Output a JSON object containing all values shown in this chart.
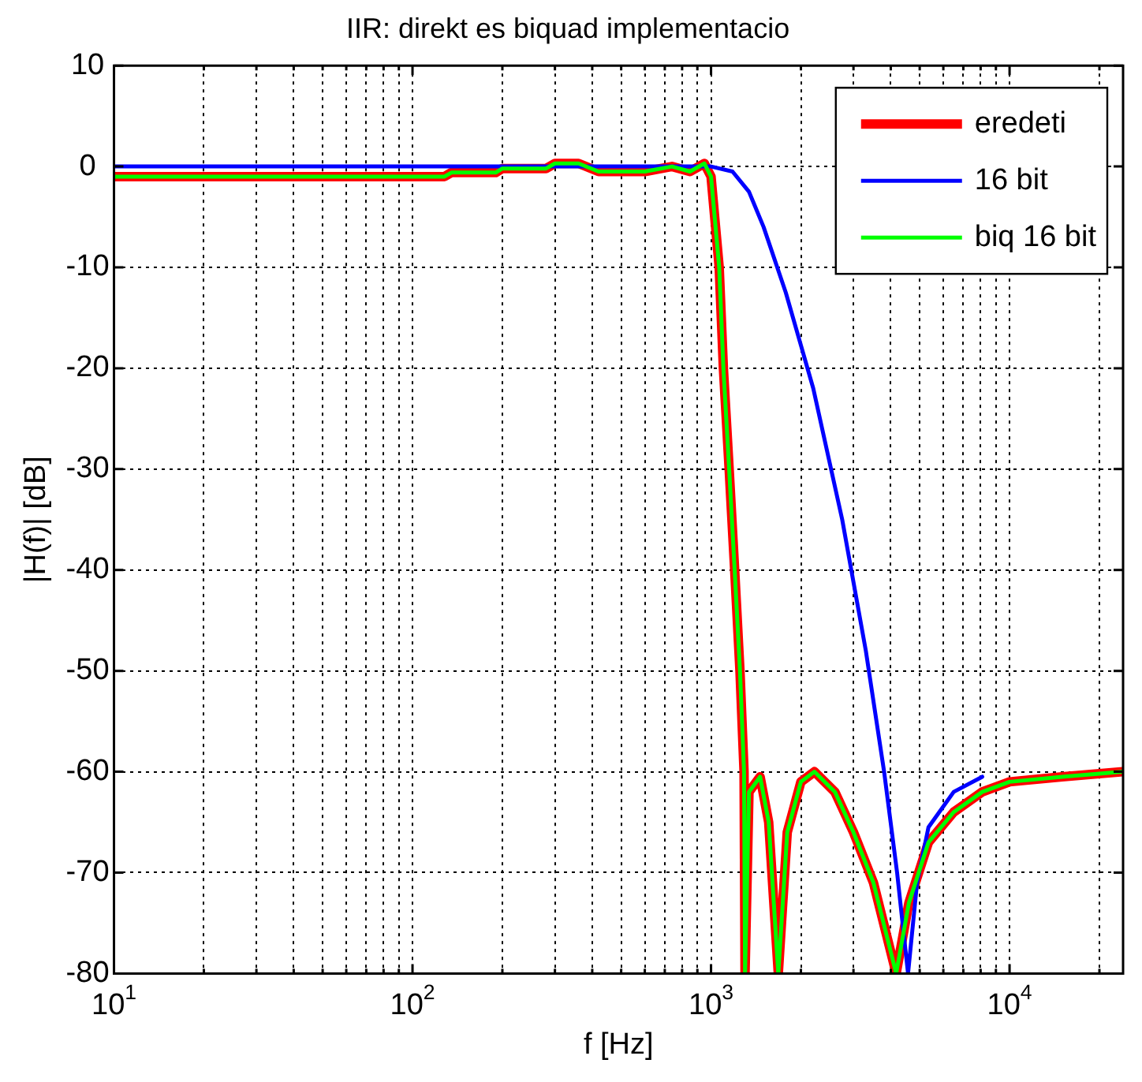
{
  "chart_data": {
    "type": "line",
    "title": "IIR: direkt es biquad implementacio",
    "xlabel": "f [Hz]",
    "ylabel": "|H(f)| [dB]",
    "log": "x",
    "grid": true,
    "legend": "top right",
    "marker": "none",
    "line_style": "solid",
    "xlim": [
      10,
      24000
    ],
    "ylim": [
      -80,
      10
    ],
    "xticks": [
      {
        "value": 10,
        "label": "10$^{1}$"
      },
      {
        "value": 20,
        "label": null
      },
      {
        "value": 30,
        "label": null
      },
      {
        "value": 40,
        "label": null
      },
      {
        "value": 50,
        "label": null
      },
      {
        "value": 60,
        "label": null
      },
      {
        "value": 70,
        "label": null
      },
      {
        "value": 80,
        "label": null
      },
      {
        "value": 90,
        "label": null
      },
      {
        "value": 100,
        "label": "10$^{2}$"
      },
      {
        "value": 200,
        "label": null
      },
      {
        "value": 300,
        "label": null
      },
      {
        "value": 400,
        "label": null
      },
      {
        "value": 500,
        "label": null
      },
      {
        "value": 600,
        "label": null
      },
      {
        "value": 700,
        "label": null
      },
      {
        "value": 800,
        "label": null
      },
      {
        "value": 900,
        "label": null
      },
      {
        "value": 1000,
        "label": "10$^{3}$"
      },
      {
        "value": 2000,
        "label": null
      },
      {
        "value": 3000,
        "label": null
      },
      {
        "value": 4000,
        "label": null
      },
      {
        "value": 5000,
        "label": null
      },
      {
        "value": 6000,
        "label": null
      },
      {
        "value": 7000,
        "label": null
      },
      {
        "value": 8000,
        "label": null
      },
      {
        "value": 9000,
        "label": null
      },
      {
        "value": 10000,
        "label": "10$^{4}$"
      },
      {
        "value": 20000,
        "label": null
      }
    ],
    "yticks": [
      10,
      0,
      -10,
      -20,
      -30,
      -40,
      -50,
      -60,
      -70,
      -80
    ],
    "series": [
      {
        "name": "eredeti",
        "color": "#ff0000",
        "x": [
          10,
          128,
          135,
          190,
          200,
          280,
          300,
          360,
          420,
          600,
          740,
          850,
          950,
          1000,
          1065,
          1100,
          1150,
          1200,
          1250,
          1290,
          1300,
          1340,
          1460,
          1560,
          1680,
          1800,
          2000,
          2220,
          2600,
          3000,
          3500,
          4170,
          4600,
          5350,
          6500,
          8100,
          10000,
          15000,
          24000
        ],
        "values": [
          -1,
          -1,
          -0.6,
          -0.6,
          -0.2,
          -0.2,
          0.3,
          0.3,
          -0.5,
          -0.5,
          0,
          -0.5,
          0.3,
          -1,
          -10,
          -20,
          -30,
          -40,
          -50,
          -60,
          -80,
          -62,
          -60.5,
          -65,
          -80,
          -66,
          -61,
          -60,
          -62,
          -66,
          -71,
          -80,
          -73,
          -67,
          -64,
          -62,
          -61,
          -60.5,
          -60
        ]
      },
      {
        "name": "16 bit",
        "color": "#0000ff",
        "x": [
          10,
          500,
          800,
          1000,
          1180,
          1340,
          1500,
          1780,
          2200,
          2750,
          3300,
          3800,
          4200,
          4570,
          4900,
          5350,
          6500,
          8100
        ],
        "values": [
          0,
          0,
          0,
          0,
          -0.5,
          -2.5,
          -6,
          -12.5,
          -22,
          -35,
          -48,
          -60,
          -70,
          -80,
          -71,
          -65.5,
          -62,
          -60.5
        ]
      },
      {
        "name": "biq 16 bit",
        "color": "#00ff00",
        "x": [
          10,
          128,
          135,
          190,
          200,
          280,
          300,
          360,
          420,
          600,
          740,
          850,
          950,
          1000,
          1065,
          1100,
          1150,
          1200,
          1250,
          1290,
          1300,
          1340,
          1460,
          1560,
          1680,
          1800,
          2000,
          2220,
          2600,
          3000,
          3500,
          4170,
          4600,
          5350,
          6500,
          8100,
          10000,
          15000,
          24000
        ],
        "values": [
          -1,
          -1,
          -0.6,
          -0.6,
          -0.2,
          -0.2,
          0.3,
          0.3,
          -0.5,
          -0.5,
          0,
          -0.5,
          0.3,
          -1,
          -10,
          -20,
          -30,
          -40,
          -50,
          -60,
          -80,
          -62,
          -60.5,
          -65,
          -80,
          -66,
          -61,
          -60,
          -62,
          -66,
          -71,
          -80,
          -73,
          -67,
          -64,
          -62,
          -61,
          -60.5,
          -60
        ]
      }
    ]
  }
}
